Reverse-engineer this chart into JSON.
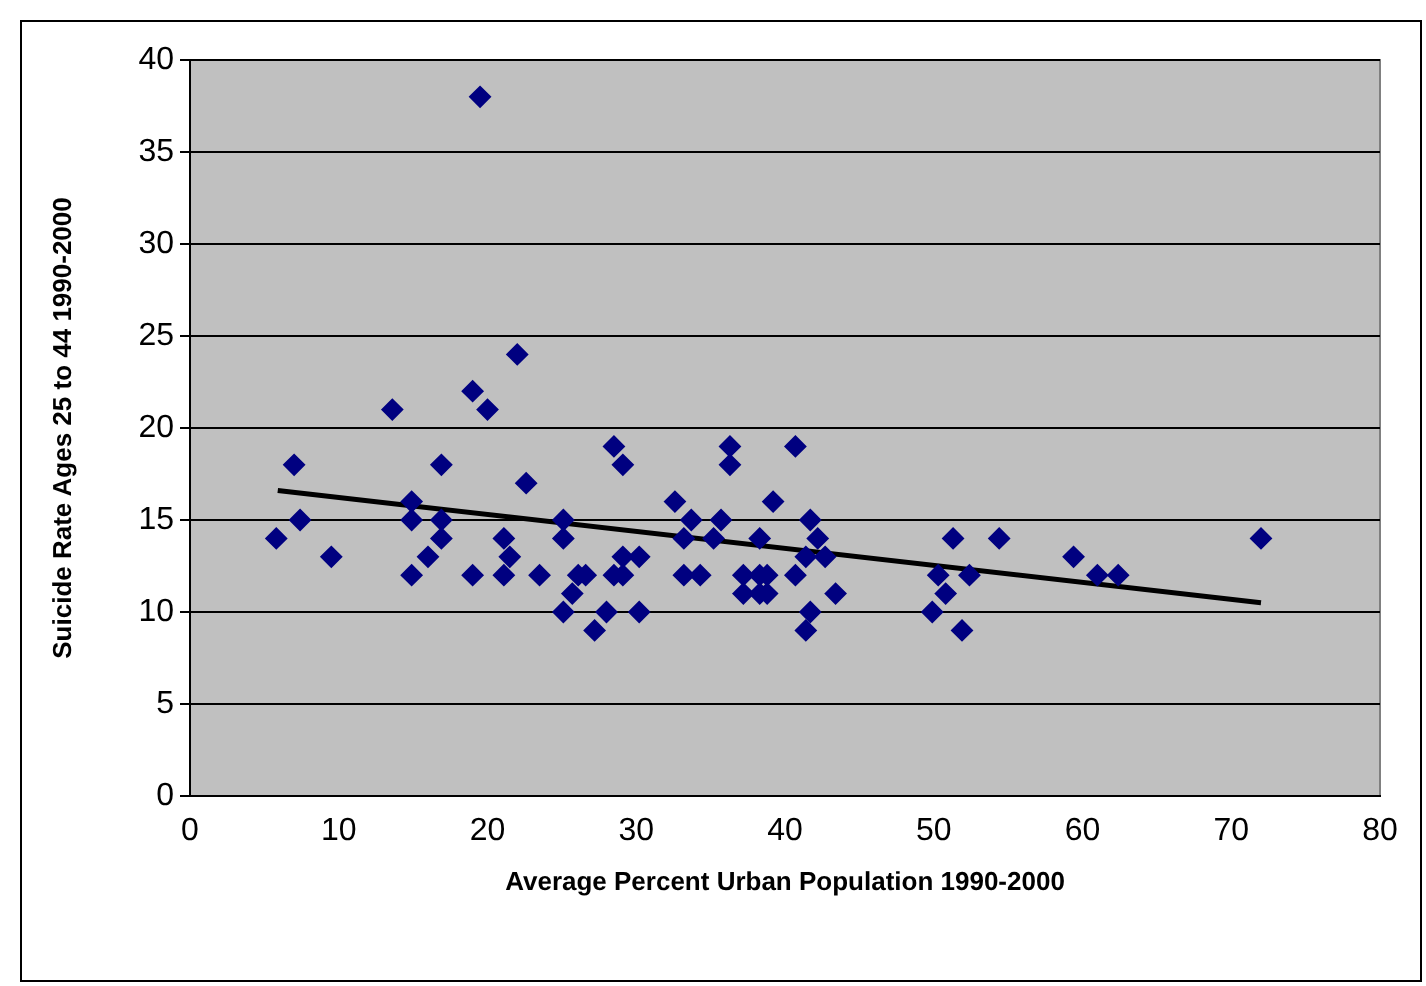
{
  "chart_data": {
    "type": "scatter",
    "xlabel": "Average Percent Urban Population 1990-2000",
    "ylabel": "Suicide Rate Ages 25 to 44 1990-2000",
    "xlim": [
      0,
      80
    ],
    "xticks": [
      0,
      10,
      20,
      30,
      40,
      50,
      60,
      70,
      80
    ],
    "ylim": [
      0,
      40
    ],
    "yticks": [
      0,
      5,
      10,
      15,
      20,
      25,
      30,
      35,
      40
    ],
    "grid": "y",
    "legend": false,
    "marker": "diamond",
    "series": [
      {
        "color": "#000080",
        "x": [
          5.8,
          7.0,
          7.4,
          9.5,
          13.6,
          14.9,
          14.9,
          14.9,
          16.0,
          16.9,
          16.9,
          16.9,
          19.0,
          19.0,
          19.5,
          20.0,
          21.1,
          21.5,
          21.1,
          22.0,
          22.6,
          23.5,
          25.1,
          25.1,
          25.1,
          25.7,
          26.1,
          26.6,
          27.2,
          28.0,
          28.5,
          29.1,
          28.5,
          29.1,
          29.1,
          30.2,
          30.2,
          32.6,
          33.2,
          33.2,
          33.7,
          34.3,
          35.2,
          35.7,
          36.3,
          36.3,
          37.2,
          37.2,
          38.3,
          38.3,
          38.3,
          38.8,
          38.8,
          39.2,
          40.7,
          40.7,
          41.4,
          41.7,
          41.7,
          41.4,
          42.2,
          42.7,
          43.4,
          49.9,
          50.3,
          50.8,
          51.3,
          51.9,
          52.4,
          54.4,
          59.4,
          61.0,
          62.4,
          72.0
        ],
        "values": [
          14,
          18,
          15,
          13,
          21,
          16,
          15,
          12,
          13,
          18,
          15,
          14,
          12,
          22,
          38,
          21,
          14,
          13,
          12,
          24,
          17,
          12,
          15,
          14,
          10,
          11,
          12,
          12,
          9,
          10,
          19,
          18,
          12,
          12,
          13,
          13,
          10,
          16,
          14,
          12,
          15,
          12,
          14,
          15,
          19,
          18,
          12,
          11,
          14,
          12,
          11,
          12,
          11,
          16,
          19,
          12,
          13,
          15,
          10,
          9,
          14,
          13,
          11,
          10,
          12,
          11,
          14,
          9,
          12,
          14,
          13,
          12,
          12,
          14
        ]
      },
      {
        "type": "line",
        "color": "#000000",
        "marker": "none",
        "x": [
          5.9,
          72.0
        ],
        "values": [
          16.6,
          10.5
        ]
      }
    ]
  }
}
